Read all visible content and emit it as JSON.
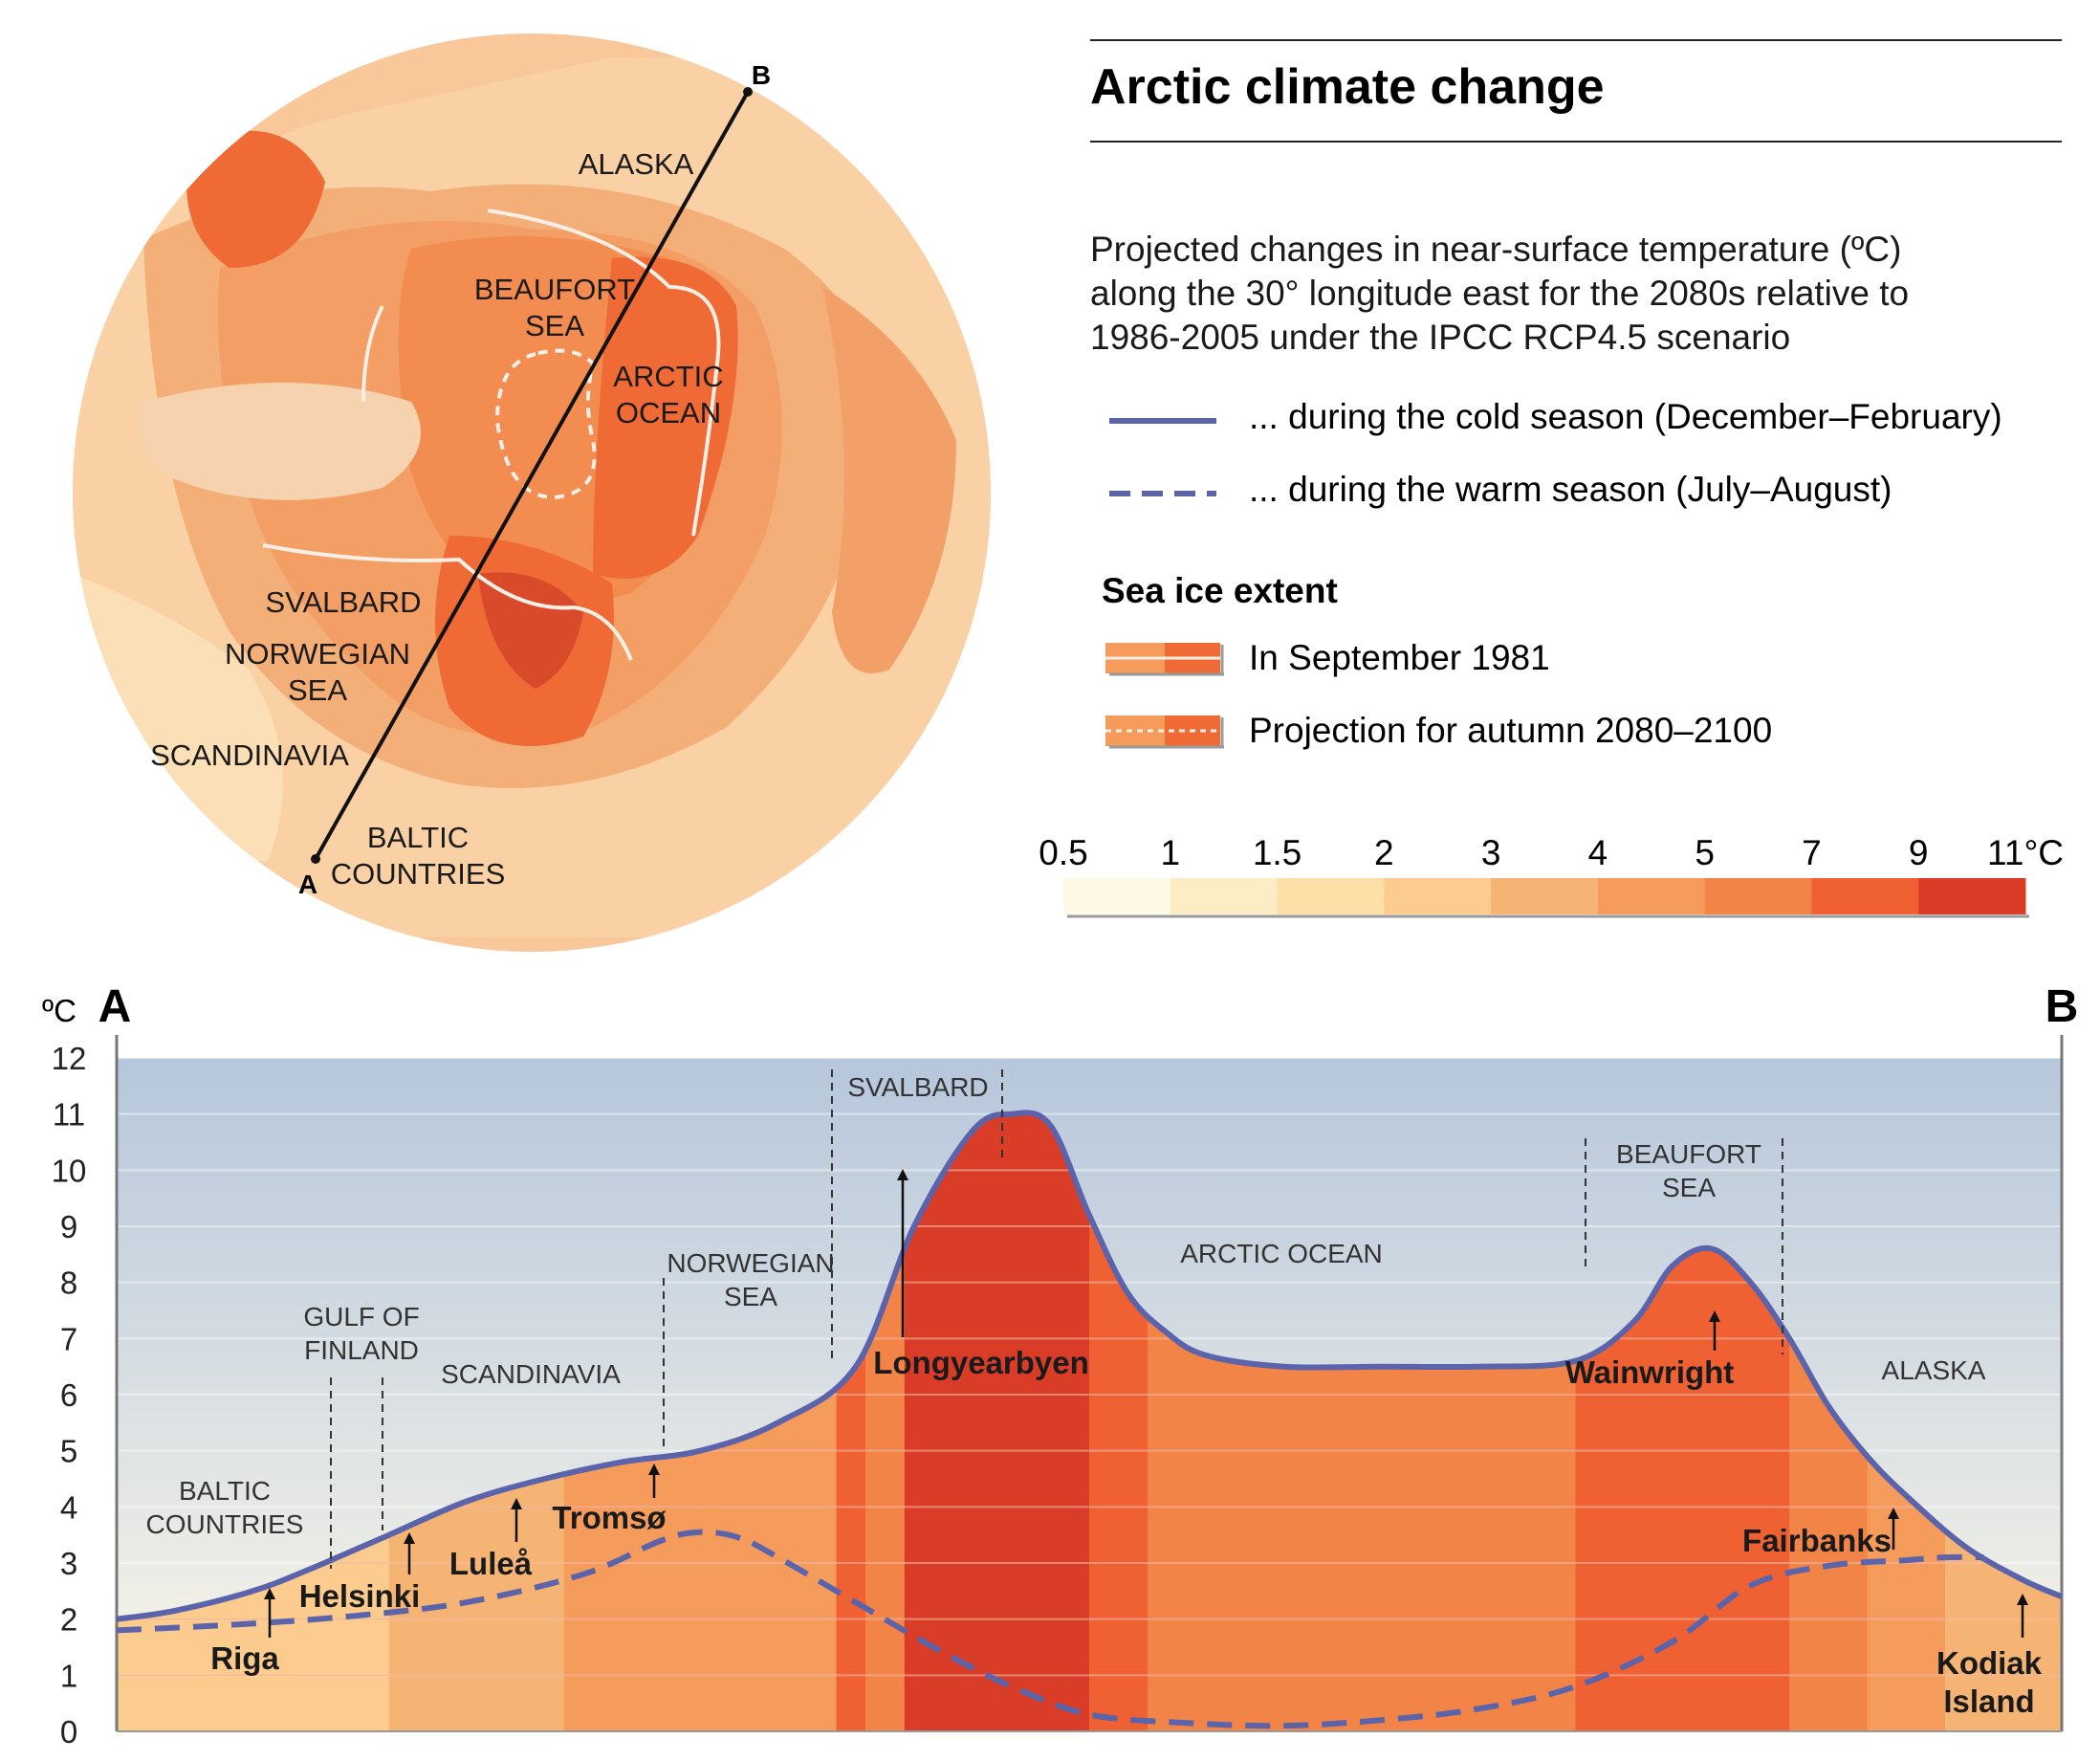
{
  "header": {
    "title": "Arctic climate change",
    "subtitle_lines": [
      "Projected changes in near-surface temperature (ºC)",
      "along the 30° longitude east for the 2080s relative to",
      "1986-2005 under the IPCC RCP4.5 scenario"
    ]
  },
  "legend": {
    "cold": "... during the cold season (December–February)",
    "warm": "... during the warm season (July–August)",
    "sea_ice_title": "Sea ice extent",
    "ice_1981": "In September 1981",
    "ice_proj": "Projection for autumn 2080–2100"
  },
  "colors": {
    "line": "#5b63ab",
    "scale": [
      "#fef9e7",
      "#fdedc4",
      "#fde0a7",
      "#fbcc8d",
      "#f6b474",
      "#f59b5b",
      "#f28447",
      "#ef6032",
      "#d93d28"
    ],
    "sky_top": "#b6c7dc",
    "sky_bottom": "#fdf8ea",
    "ice_line": "#fbe9dd"
  },
  "scale": {
    "labels": [
      "0.5",
      "1",
      "1.5",
      "2",
      "3",
      "4",
      "5",
      "7",
      "9",
      "11°C"
    ]
  },
  "map": {
    "point_a": "A",
    "point_b": "B",
    "labels": [
      {
        "id": "alaska",
        "lines": [
          "ALASKA"
        ]
      },
      {
        "id": "beaufort",
        "lines": [
          "BEAUFORT",
          "SEA"
        ]
      },
      {
        "id": "arctic-ocean",
        "lines": [
          "ARCTIC",
          "OCEAN"
        ]
      },
      {
        "id": "svalbard",
        "lines": [
          "SVALBARD"
        ]
      },
      {
        "id": "norwegian",
        "lines": [
          "NORWEGIAN",
          "SEA"
        ]
      },
      {
        "id": "scandinavia",
        "lines": [
          "SCANDINAVIA"
        ]
      },
      {
        "id": "baltic",
        "lines": [
          "BALTIC",
          "COUNTRIES"
        ]
      }
    ]
  },
  "profile": {
    "unit": "ºC",
    "end_a": "A",
    "end_b": "B",
    "regions": [
      {
        "id": "baltic",
        "lines": [
          "BALTIC",
          "COUNTRIES"
        ]
      },
      {
        "id": "gulf",
        "lines": [
          "GULF OF",
          "FINLAND"
        ]
      },
      {
        "id": "scandinavia",
        "lines": [
          "SCANDINAVIA"
        ]
      },
      {
        "id": "norwegian",
        "lines": [
          "NORWEGIAN",
          "SEA"
        ]
      },
      {
        "id": "svalbard",
        "lines": [
          "SVALBARD"
        ]
      },
      {
        "id": "arctic",
        "lines": [
          "ARCTIC OCEAN"
        ]
      },
      {
        "id": "beaufort",
        "lines": [
          "BEAUFORT",
          "SEA"
        ]
      },
      {
        "id": "alaska",
        "lines": [
          "ALASKA"
        ]
      }
    ],
    "cities": [
      {
        "id": "riga",
        "lines": [
          "Riga"
        ]
      },
      {
        "id": "helsinki",
        "lines": [
          "Helsinki"
        ]
      },
      {
        "id": "lulea",
        "lines": [
          "Luleå"
        ]
      },
      {
        "id": "tromso",
        "lines": [
          "Tromsø"
        ]
      },
      {
        "id": "longyearbyen",
        "lines": [
          "Longyearbyen"
        ]
      },
      {
        "id": "wainwright",
        "lines": [
          "Wainwright"
        ]
      },
      {
        "id": "fairbanks",
        "lines": [
          "Fairbanks"
        ]
      },
      {
        "id": "kodiak",
        "lines": [
          "Kodiak",
          "Island"
        ]
      }
    ]
  },
  "chart_data": {
    "type": "area",
    "title": "Arctic climate change",
    "xlabel": "",
    "ylabel": "ºC",
    "ylim": [
      0,
      12
    ],
    "yticks": [
      0,
      1,
      2,
      3,
      4,
      5,
      6,
      7,
      8,
      9,
      10,
      11,
      12
    ],
    "x_range": [
      0,
      100
    ],
    "x_description_endpoints": [
      "A",
      "B"
    ],
    "grid": true,
    "series": [
      {
        "name": "... during the cold season (December–February)",
        "style": "solid",
        "x": [
          0,
          3,
          7,
          10,
          14,
          18,
          22,
          26,
          30,
          34,
          38,
          41,
          44,
          46,
          48,
          50,
          52,
          54,
          56,
          60,
          65,
          70,
          75,
          78,
          80,
          82,
          84,
          86,
          88,
          90,
          92,
          95,
          98,
          100
        ],
        "y": [
          2.0,
          2.15,
          2.5,
          2.9,
          3.5,
          4.1,
          4.5,
          4.8,
          5.0,
          5.5,
          6.5,
          9.0,
          10.7,
          11.0,
          10.8,
          9.2,
          7.8,
          7.1,
          6.7,
          6.5,
          6.5,
          6.5,
          6.6,
          7.3,
          8.3,
          8.6,
          8.0,
          7.0,
          5.8,
          4.9,
          4.2,
          3.3,
          2.7,
          2.4
        ]
      },
      {
        "name": "... during the warm season (July–August)",
        "style": "dashed",
        "x": [
          0,
          6,
          12,
          18,
          24,
          28,
          30,
          32,
          34,
          38,
          42,
          46,
          50,
          55,
          60,
          65,
          70,
          75,
          80,
          84,
          88,
          92,
          94,
          96
        ],
        "y": [
          1.8,
          1.9,
          2.05,
          2.3,
          2.8,
          3.4,
          3.55,
          3.45,
          3.1,
          2.3,
          1.5,
          0.8,
          0.3,
          0.15,
          0.1,
          0.2,
          0.4,
          0.8,
          1.6,
          2.6,
          2.95,
          3.05,
          3.1,
          3.1
        ]
      }
    ],
    "sea_ice_extent": [
      "In September 1981",
      "Projection for autumn 2080–2100"
    ]
  }
}
